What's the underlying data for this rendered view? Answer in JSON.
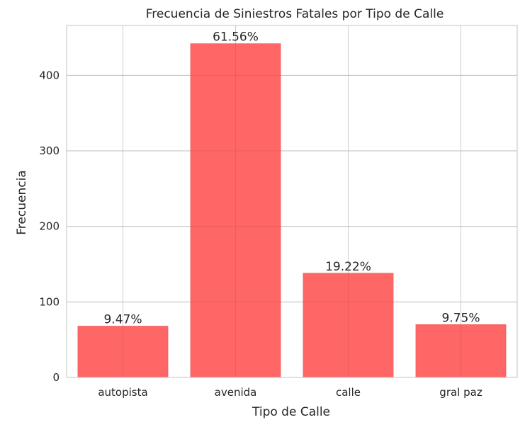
{
  "chart_data": {
    "type": "bar",
    "title": "Frecuencia de Siniestros Fatales por Tipo de Calle",
    "xlabel": "Tipo de Calle",
    "ylabel": "Frecuencia",
    "categories": [
      "autopista",
      "avenida",
      "calle",
      "gral paz"
    ],
    "values": [
      68,
      442,
      138,
      70
    ],
    "data_labels": [
      "9.47%",
      "61.56%",
      "19.22%",
      "9.75%"
    ],
    "ylim": [
      0,
      466
    ],
    "yticks": [
      0,
      100,
      200,
      300,
      400
    ],
    "ytick_labels": [
      "0",
      "100",
      "200",
      "300",
      "400"
    ],
    "grid": true,
    "bar_color": "#ff6666",
    "bar_edge_color": "#e05252",
    "grid_color": "#cccccc",
    "text_color": "#262626"
  }
}
